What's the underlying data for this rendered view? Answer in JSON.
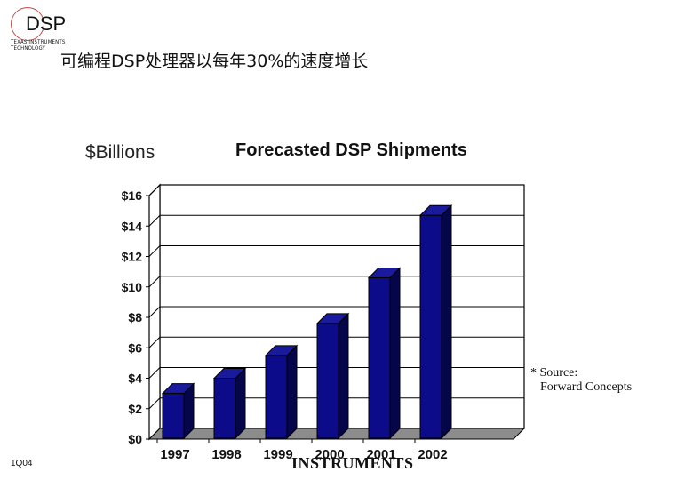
{
  "logo": {
    "text": "DSP",
    "subtext": "TEXAS INSTRUMENTS TECHNOLOGY",
    "icon": "dsp-logo-icon"
  },
  "slide_title": "可编程DSP处理器以每年30%的速度增长",
  "footer": {
    "code": "1Q04",
    "brand": "INSTRUMENTS"
  },
  "source_note": {
    "line1": "* Source:",
    "line2": "Forward Concepts"
  },
  "chart_data": {
    "type": "bar",
    "title": "Forecasted DSP Shipments",
    "ylabel": "$Billions",
    "xlabel": "",
    "categories": [
      "1997",
      "1998",
      "1999",
      "2000",
      "2001",
      "2002"
    ],
    "values": [
      3.0,
      4.0,
      5.5,
      7.6,
      10.6,
      14.7
    ],
    "ylim": [
      0,
      16
    ],
    "yticks": [
      "$0",
      "$2",
      "$4",
      "$6",
      "$8",
      "$10",
      "$12",
      "$14",
      "$16"
    ],
    "grid": true,
    "bar_color": "#0c0c8a",
    "bar_side_color": "#05054a",
    "floor_color": "#8c8c8c"
  }
}
